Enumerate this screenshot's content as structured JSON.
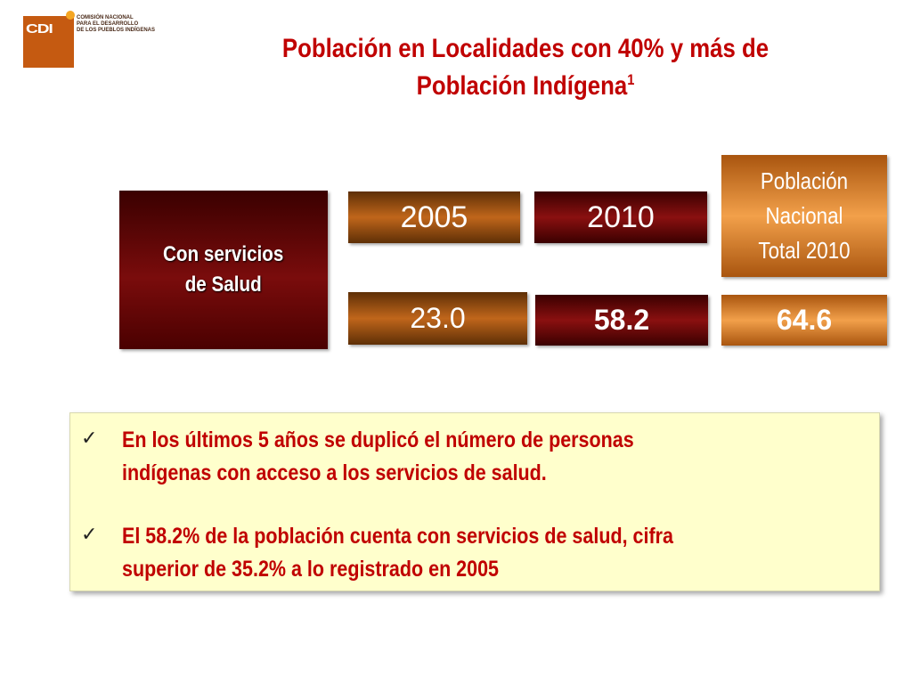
{
  "logo": {
    "letters": "CDI",
    "lines": [
      "COMISIÓN NACIONAL",
      "PARA EL DESARROLLO",
      "DE LOS PUEBLOS INDÍGENAS"
    ],
    "brand_color": "#c55a11"
  },
  "title": {
    "line1": "Población en Localidades con 40% y más de",
    "line2": "Población Indígena",
    "superscript": "1"
  },
  "table": {
    "row_label": [
      "Con servicios",
      "de Salud"
    ],
    "col_2005": "2005",
    "col_2010": "2010",
    "national_label": [
      "Población",
      "Nacional",
      "Total 2010"
    ],
    "value_2005": "23.0",
    "value_2010": "58.2",
    "value_national": "64.6"
  },
  "notes": {
    "check_icon": "check-icon",
    "items": [
      {
        "line1": "En los últimos 5 años se duplicó el número de personas",
        "line2": "indígenas con acceso a los servicios de salud."
      },
      {
        "line1": "El 58.2% de la población cuenta con servicios de salud, cifra",
        "line2": "superior de 35.2% a lo registrado en 2005"
      }
    ]
  }
}
